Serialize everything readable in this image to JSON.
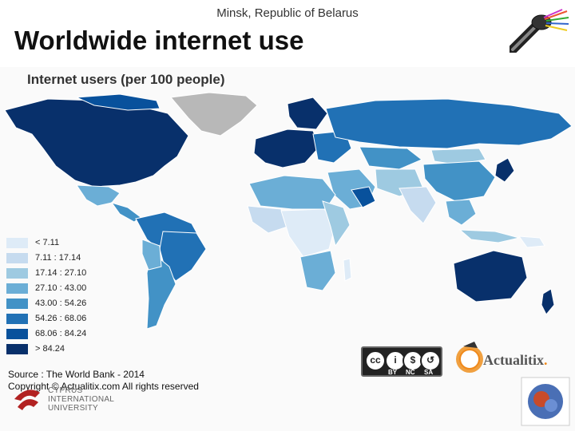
{
  "header": {
    "subtitle": "Minsk, Republic of Belarus",
    "title": "Worldwide internet use"
  },
  "map": {
    "heading": "Internet users (per 100 people)",
    "legend": [
      {
        "label": "< 7.11",
        "color": "#deebf7"
      },
      {
        "label": "7.11 : 17.14",
        "color": "#c6dbef"
      },
      {
        "label": "17.14 : 27.10",
        "color": "#9ecae1"
      },
      {
        "label": "27.10 : 43.00",
        "color": "#6baed6"
      },
      {
        "label": "43.00 : 54.26",
        "color": "#4292c6"
      },
      {
        "label": "54.26 : 68.06",
        "color": "#2171b5"
      },
      {
        "label": "68.06 : 84.24",
        "color": "#08519c"
      },
      {
        "label": "> 84.24",
        "color": "#08306b"
      }
    ],
    "source_line1": "Source : The World Bank - 2014",
    "source_line2": "Copyright © Actualitix.com All rights reserved"
  },
  "license": {
    "by": "BY",
    "nc": "NC",
    "sa": "SA"
  },
  "brand": {
    "name_prefix": "Actualitix",
    "name_dot": "."
  },
  "university": {
    "line1": "CYPRUS",
    "line2": "INTERNATIONAL",
    "line3": "UNIVERSITY"
  }
}
